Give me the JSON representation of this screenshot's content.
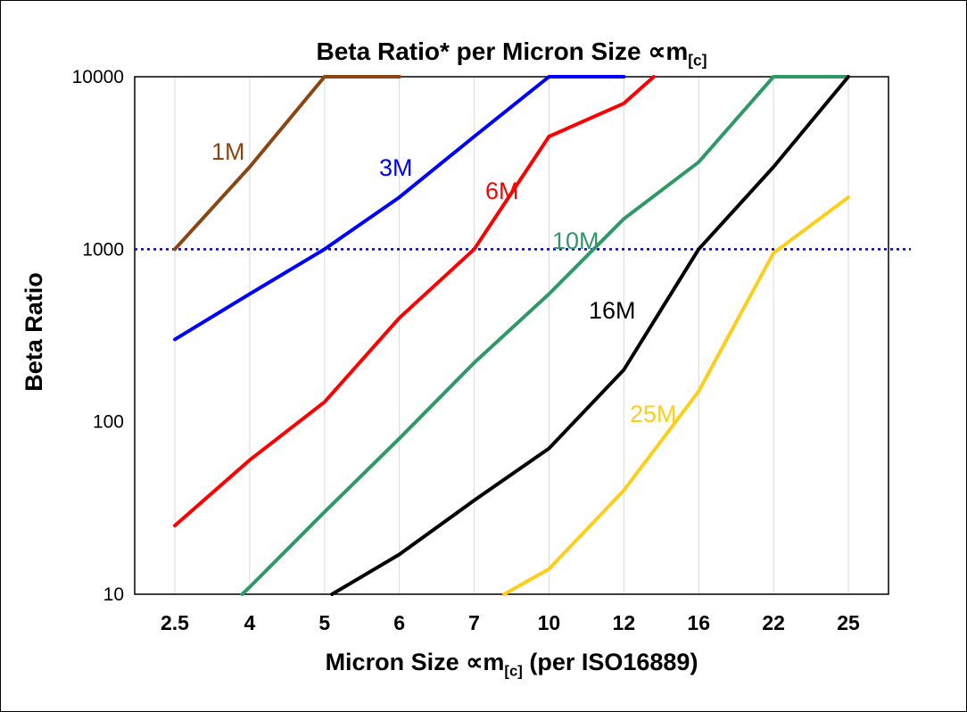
{
  "title": {
    "prefix": "Beta Ratio* per Micron Size ",
    "symbol": "∝m",
    "sub": "[c]"
  },
  "y_axis": {
    "label": "Beta Ratio"
  },
  "x_axis": {
    "label_prefix": "Micron Size ",
    "label_symbol": "∝m",
    "label_sub": "[c]",
    "label_suffix": " (per ISO16889)"
  },
  "chart_data": {
    "type": "line",
    "title": "Beta Ratio* per Micron Size ∝m[c]",
    "xlabel": "Micron Size ∝m[c] (per ISO16889)",
    "ylabel": "Beta Ratio",
    "x_categories": [
      2.5,
      4,
      5,
      6,
      7,
      10,
      12,
      16,
      22,
      25
    ],
    "y_scale": "log",
    "ylim": [
      10,
      10000
    ],
    "y_ticks": [
      10000,
      1000,
      100,
      10
    ],
    "grid": "vertical",
    "grid_color": "#d9d9d9",
    "reference_line": {
      "y": 1000,
      "style": "dotted",
      "color": "#0000cc"
    },
    "series": [
      {
        "name": "1M",
        "color": "#8B4513",
        "points": [
          [
            0,
            1000
          ],
          [
            1,
            3000
          ],
          [
            2,
            10000
          ],
          [
            3,
            10000
          ]
        ],
        "label_pos": [
          236,
          178
        ]
      },
      {
        "name": "3M",
        "color": "#0000FF",
        "points": [
          [
            0,
            300
          ],
          [
            1,
            550
          ],
          [
            2,
            1000
          ],
          [
            3,
            2000
          ],
          [
            4,
            4500
          ],
          [
            5,
            10000
          ],
          [
            6,
            10000
          ]
        ],
        "label_pos": [
          424,
          196
        ]
      },
      {
        "name": "6M",
        "color": "#FF0000",
        "points": [
          [
            0,
            25
          ],
          [
            1,
            60
          ],
          [
            2,
            130
          ],
          [
            3,
            400
          ],
          [
            4,
            1000
          ],
          [
            5,
            4500
          ],
          [
            6,
            7000
          ],
          [
            6.4,
            10000
          ]
        ],
        "label_pos": [
          543,
          222
        ]
      },
      {
        "name": "10M",
        "color": "#2E9966",
        "points": [
          [
            0.9,
            10
          ],
          [
            1,
            11
          ],
          [
            2,
            30
          ],
          [
            3,
            80
          ],
          [
            4,
            220
          ],
          [
            5,
            550
          ],
          [
            6,
            1500
          ],
          [
            7,
            3200
          ],
          [
            8,
            10000
          ],
          [
            9,
            10000
          ]
        ],
        "label_pos": [
          618,
          278
        ]
      },
      {
        "name": "16M",
        "color": "#000000",
        "points": [
          [
            2.1,
            10
          ],
          [
            3,
            17
          ],
          [
            4,
            35
          ],
          [
            5,
            70
          ],
          [
            6,
            200
          ],
          [
            7,
            1000
          ],
          [
            8,
            3000
          ],
          [
            9,
            10000
          ]
        ],
        "label_pos": [
          659,
          356
        ]
      },
      {
        "name": "25M",
        "color": "#FFCE1B",
        "points": [
          [
            4.4,
            10
          ],
          [
            5,
            14
          ],
          [
            6,
            40
          ],
          [
            7,
            150
          ],
          [
            8,
            950
          ],
          [
            9,
            2000
          ]
        ],
        "label_pos": [
          705,
          472
        ]
      }
    ]
  }
}
